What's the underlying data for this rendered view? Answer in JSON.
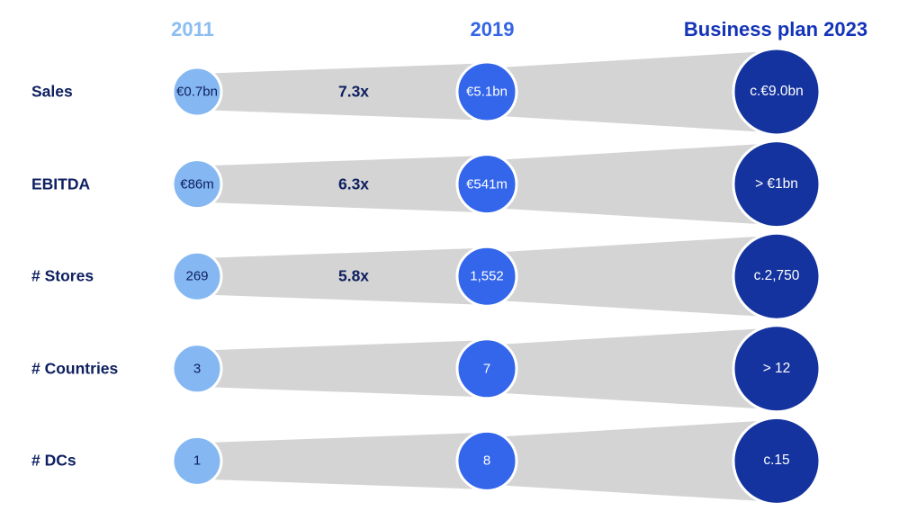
{
  "page": {
    "background": "#ffffff",
    "description": "Growth funnel bubble chart comparing key metrics across 2011, 2019 and Business plan 2023"
  },
  "chart_data": {
    "type": "table",
    "variant": "growth-funnel-bubble-chart",
    "title": "",
    "legend": "none",
    "columns": [
      "2011",
      "2019",
      "Business plan 2023"
    ],
    "rows": [
      {
        "label": "Sales",
        "values": [
          "€0.7bn",
          "€5.1bn",
          "c.€9.0bn"
        ],
        "multiplier": "7.3x"
      },
      {
        "label": "EBITDA",
        "values": [
          "€86m",
          "€541m",
          "> €1bn"
        ],
        "multiplier": "6.3x"
      },
      {
        "label": "# Stores",
        "values": [
          "269",
          "1,552",
          "c.2,750"
        ],
        "multiplier": "5.8x"
      },
      {
        "label": "# Countries",
        "values": [
          "3",
          "7",
          "> 12"
        ],
        "multiplier": ""
      },
      {
        "label": "# DCs",
        "values": [
          "1",
          "8",
          "c.15"
        ],
        "multiplier": ""
      }
    ],
    "colors": {
      "col_2011_fill": "#85b8f2",
      "col_2019_fill": "#3366eb",
      "col_2023_fill": "#14339e",
      "header_2011": "#8bbdf2",
      "header_2019": "#3465e4",
      "header_2023": "#1333b8",
      "funnel_gray": "#d4d4d4",
      "navy_text": "#0f2060",
      "bubble_text_light": "#0f2060",
      "bubble_text_dark": "#ffffff",
      "bubble_stroke": "#ffffff"
    }
  }
}
